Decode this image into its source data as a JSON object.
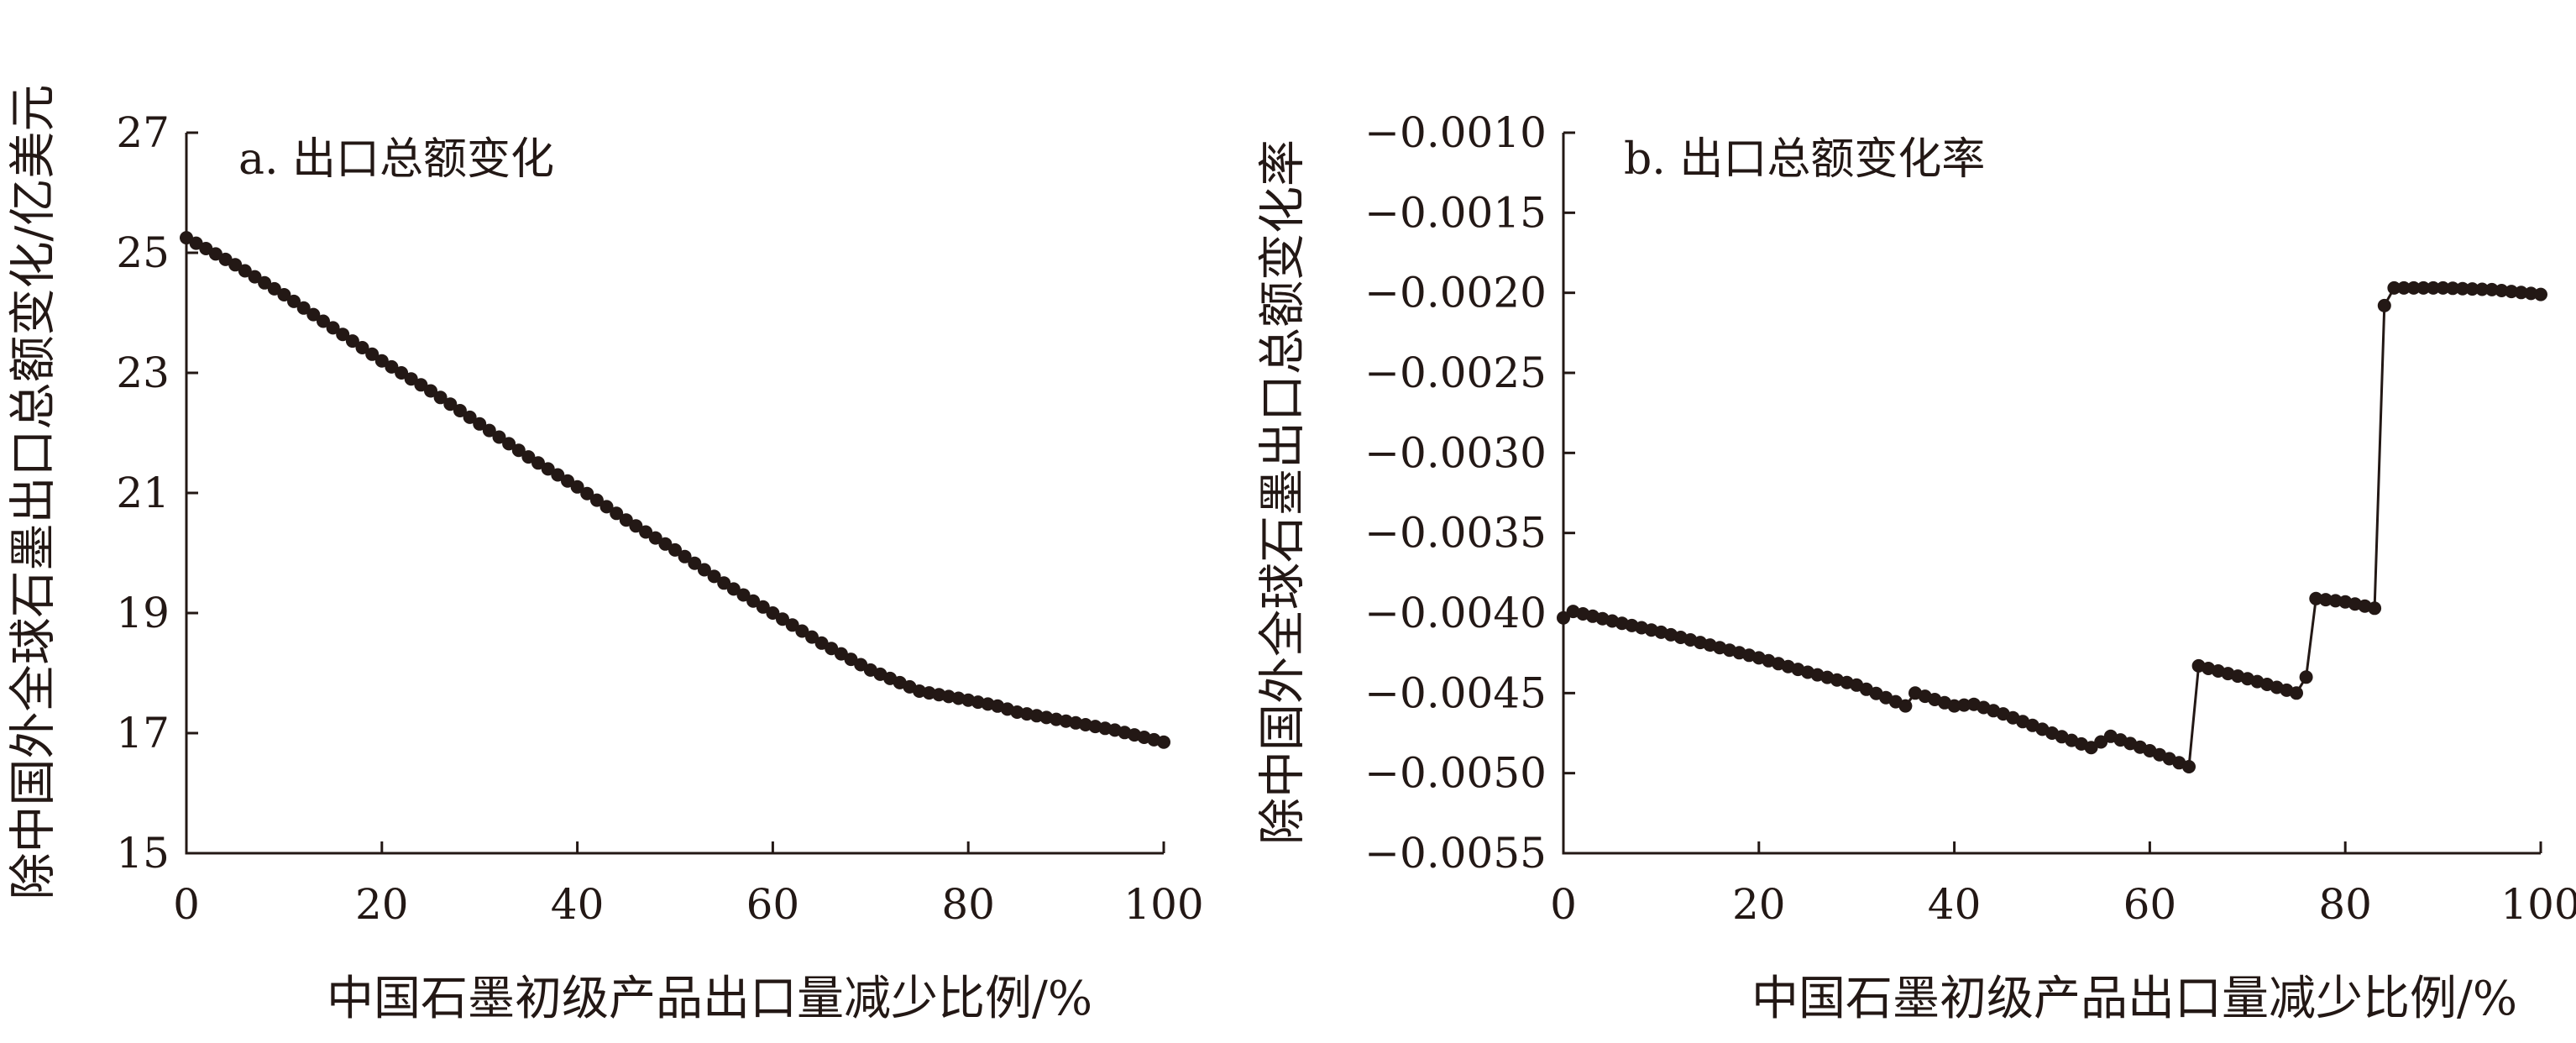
{
  "colors": {
    "ink": "#231815",
    "background": "#ffffff"
  },
  "chart_data": [
    {
      "type": "line",
      "title": "a. 出口总额变化",
      "xlabel": "中国石墨初级产品出口量减少比例/%",
      "ylabel": "除中国外全球石墨出口总额变化/亿美元",
      "xlim": [
        0,
        100
      ],
      "ylim": [
        15,
        27
      ],
      "xticks": [
        0,
        20,
        40,
        60,
        80,
        100
      ],
      "xtick_labels": [
        "0",
        "20",
        "40",
        "60",
        "80",
        "100"
      ],
      "yticks": [
        15,
        17,
        19,
        21,
        23,
        25,
        27
      ],
      "ytick_labels": [
        "15",
        "17",
        "19",
        "21",
        "23",
        "25",
        "27"
      ],
      "grid": false,
      "legend": "none",
      "markers": "filled-circle",
      "series": [
        {
          "x": [
            0,
            5,
            10,
            15,
            20,
            25,
            30,
            35,
            40,
            45,
            50,
            55,
            60,
            65,
            70,
            75,
            80,
            83,
            85,
            90,
            95,
            100
          ],
          "y": [
            25.25,
            24.8,
            24.3,
            23.75,
            23.2,
            22.7,
            22.15,
            21.6,
            21.1,
            20.55,
            20.05,
            19.5,
            19.0,
            18.5,
            18.05,
            17.7,
            17.55,
            17.45,
            17.35,
            17.2,
            17.05,
            16.85
          ]
        }
      ]
    },
    {
      "type": "line",
      "title": "b. 出口总额变化率",
      "xlabel": "中国石墨初级产品出口量减少比例/%",
      "ylabel": "除中国外全球石墨出口总额变化率",
      "xlim": [
        0,
        100
      ],
      "ylim": [
        -0.0055,
        -0.001
      ],
      "xticks": [
        0,
        20,
        40,
        60,
        80,
        100
      ],
      "xtick_labels": [
        "0",
        "20",
        "40",
        "60",
        "80",
        "100"
      ],
      "yticks": [
        -0.001,
        -0.0015,
        -0.002,
        -0.0025,
        -0.003,
        -0.0035,
        -0.004,
        -0.0045,
        -0.005,
        -0.0055
      ],
      "ytick_labels": [
        "−0.0010",
        "−0.0015",
        "−0.0020",
        "−0.0025",
        "−0.0030",
        "−0.0035",
        "−0.0040",
        "−0.0045",
        "−0.0050",
        "−0.0055"
      ],
      "grid": false,
      "legend": "none",
      "markers": "filled-circle",
      "series": [
        {
          "x": [
            0,
            1,
            5,
            10,
            15,
            20,
            25,
            30,
            35,
            36,
            40,
            42,
            45,
            50,
            54,
            56,
            60,
            64,
            65,
            70,
            75,
            76,
            77,
            80,
            83,
            84,
            85,
            90,
            95,
            100
          ],
          "y": [
            -0.00403,
            -0.00399,
            -0.00405,
            -0.00412,
            -0.0042,
            -0.00428,
            -0.00437,
            -0.00445,
            -0.00458,
            -0.0045,
            -0.00458,
            -0.00457,
            -0.00463,
            -0.00475,
            -0.00484,
            -0.00477,
            -0.00486,
            -0.00496,
            -0.00433,
            -0.00441,
            -0.0045,
            -0.0044,
            -0.00391,
            -0.00393,
            -0.00397,
            -0.00208,
            -0.00197,
            -0.00197,
            -0.00198,
            -0.00201
          ]
        }
      ]
    }
  ]
}
